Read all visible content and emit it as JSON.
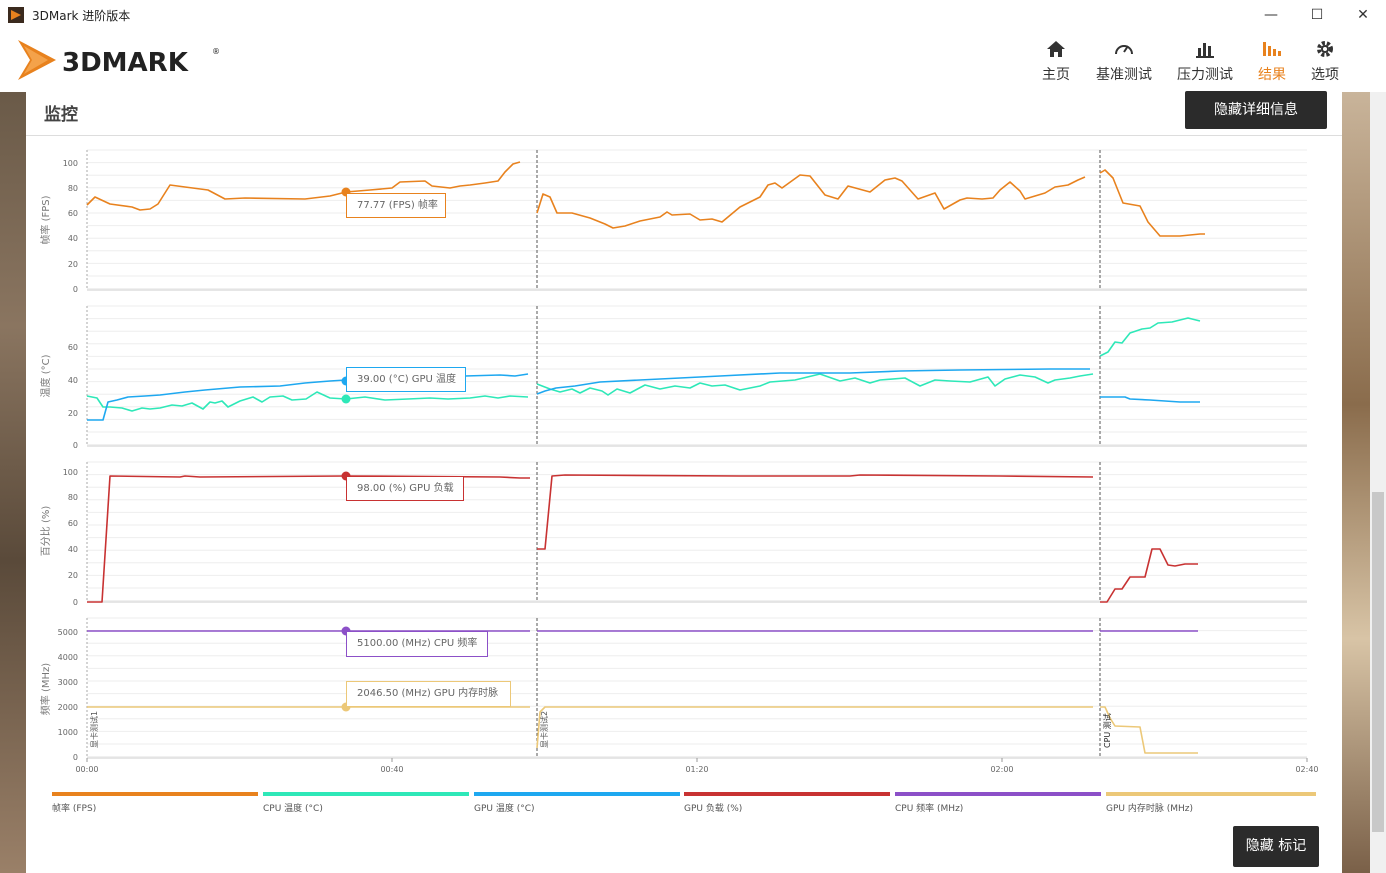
{
  "window": {
    "title": "3DMark 进阶版本",
    "minimize": "—",
    "maximize": "☐",
    "close": "✕"
  },
  "logo": {
    "text": "3DMARK",
    "mark": "®"
  },
  "nav": [
    {
      "label": "主页",
      "icon": "home-icon"
    },
    {
      "label": "基准测试",
      "icon": "gauge-icon"
    },
    {
      "label": "压力测试",
      "icon": "bar-chart-icon"
    },
    {
      "label": "结果",
      "icon": "results-icon",
      "active": true
    },
    {
      "label": "选项",
      "icon": "gear-icon"
    }
  ],
  "panel": {
    "title": "监控",
    "hide_details": "隐藏详细信息",
    "hide_markers": "隐藏 标记"
  },
  "colors": {
    "fps": "#e8821e",
    "cpu_temp": "#2ee8b8",
    "gpu_temp": "#1ea8f0",
    "gpu_load": "#c83232",
    "cpu_clock": "#8c50c8",
    "gpu_mem": "#ecc878",
    "accent": "#e8821e"
  },
  "chart_data": {
    "type": "line",
    "x_ticks": [
      "00:00",
      "00:40",
      "01:20",
      "02:00",
      "02:40"
    ],
    "markers": [
      "显卡测试1",
      "显卡测试2",
      "CPU 测试"
    ],
    "panels": [
      {
        "ylabel": "帧率 (FPS)",
        "yticks": [
          "0",
          "20",
          "40",
          "60",
          "80",
          "100"
        ]
      },
      {
        "ylabel": "温度 (°C)",
        "yticks": [
          "0",
          "20",
          "40",
          "60"
        ]
      },
      {
        "ylabel": "百分比 (%)",
        "yticks": [
          "0",
          "20",
          "40",
          "60",
          "80",
          "100"
        ]
      },
      {
        "ylabel": "频率 (MHz)",
        "yticks": [
          "0",
          "1000",
          "2000",
          "3000",
          "4000",
          "5000"
        ]
      }
    ],
    "tooltips": [
      {
        "text": "77.77 (FPS) 帧率"
      },
      {
        "text": "39.00 (°C) GPU 温度"
      },
      {
        "text": "98.00 (%) GPU 负载"
      },
      {
        "text": "5100.00 (MHz) CPU 频率"
      },
      {
        "text": "2046.50 (MHz) GPU 内存时脉"
      }
    ],
    "legend": [
      {
        "name": "帧率 (FPS)"
      },
      {
        "name": "CPU 温度 (°C)"
      },
      {
        "name": "GPU 温度 (°C)"
      },
      {
        "name": "GPU 负载 (%)"
      },
      {
        "name": "CPU 频率 (MHz)"
      },
      {
        "name": "GPU 内存时脉 (MHz)"
      }
    ]
  }
}
